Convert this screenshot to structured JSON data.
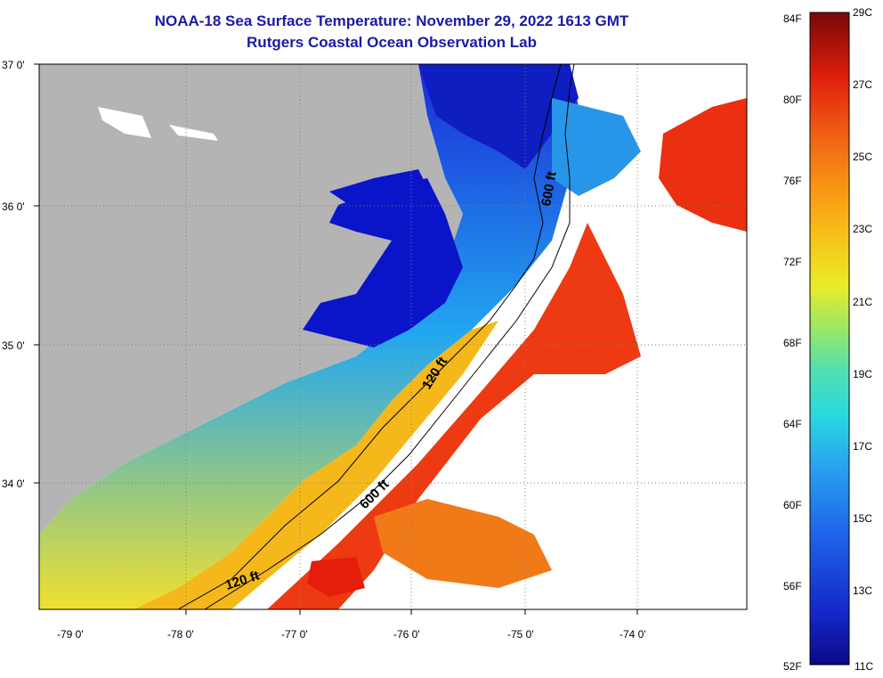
{
  "title": {
    "line1": "NOAA-18 Sea Surface Temperature:  November 29, 2022 1613 GMT",
    "line2": "Rutgers Coastal Ocean Observation Lab"
  },
  "axes": {
    "lat_ticks": [
      "37 0'",
      "36 0'",
      "35 0'",
      "34 0'"
    ],
    "lon_ticks": [
      "-79 0'",
      "-78 0'",
      "-77 0'",
      "-76 0'",
      "-75 0'",
      "-74 0'"
    ]
  },
  "contours": {
    "c120_a": "120 ft",
    "c120_b": "120 ft",
    "c600_a": "600 ft",
    "c600_b": "600 ft"
  },
  "colorbar": {
    "fahrenheit": [
      "84F",
      "80F",
      "76F",
      "72F",
      "68F",
      "64F",
      "60F",
      "56F",
      "52F"
    ],
    "celsius": [
      "29C",
      "27C",
      "25C",
      "23C",
      "21C",
      "19C",
      "17C",
      "15C",
      "13C",
      "11C"
    ]
  },
  "colors": {
    "land": "#b4b4b4",
    "cold": "#0a0aa0",
    "warm": "#e81a0a",
    "title": "#1a1aa8"
  }
}
